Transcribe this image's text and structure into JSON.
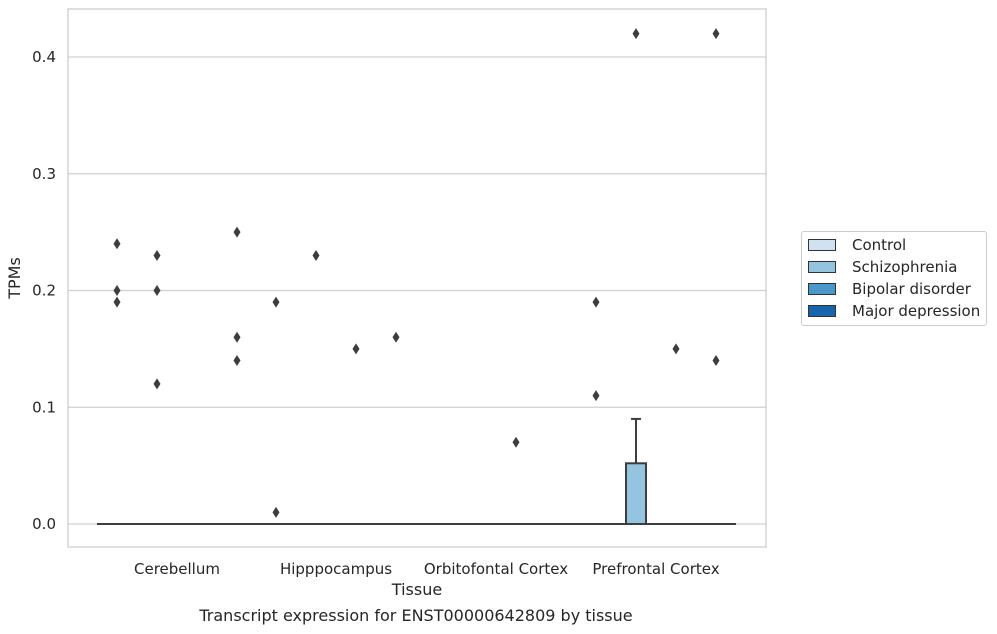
{
  "caption": "Transcript expression for ENST00000642809 by tissue",
  "colors": {
    "Control": "#d0e2f2",
    "Schizophrenia": "#94c4df",
    "Bipolar disorder": "#4a98c9",
    "Major depression": "#1764ab",
    "box_edge": "#3d3d3d",
    "grid": "#d0d0d0"
  },
  "chart_data": {
    "type": "box",
    "xlabel": "Tissue",
    "ylabel": "TPMs",
    "ylim": [
      -0.02,
      0.44
    ],
    "yticks": [
      0.0,
      0.1,
      0.2,
      0.3,
      0.4
    ],
    "ytick_labels": [
      "0.0",
      "0.1",
      "0.2",
      "0.3",
      "0.4"
    ],
    "grid": "horizontal",
    "legend_position": "right",
    "categories": [
      "Cerebellum",
      "Hipppocampus",
      "Orbitofontal Cortex",
      "Prefrontal Cortex"
    ],
    "hue_order": [
      "Control",
      "Schizophrenia",
      "Bipolar disorder",
      "Major depression"
    ],
    "boxes": [
      {
        "category": "Cerebellum",
        "group": "Control",
        "q1": 0,
        "median": 0,
        "q3": 0,
        "whisker_low": 0,
        "whisker_high": 0,
        "outliers": [
          0.24,
          0.2,
          0.19
        ]
      },
      {
        "category": "Cerebellum",
        "group": "Schizophrenia",
        "q1": 0,
        "median": 0,
        "q3": 0,
        "whisker_low": 0,
        "whisker_high": 0,
        "outliers": [
          0.23,
          0.2,
          0.12
        ]
      },
      {
        "category": "Cerebellum",
        "group": "Bipolar disorder",
        "q1": 0,
        "median": 0,
        "q3": 0,
        "whisker_low": 0,
        "whisker_high": 0,
        "outliers": []
      },
      {
        "category": "Cerebellum",
        "group": "Major depression",
        "q1": 0,
        "median": 0,
        "q3": 0,
        "whisker_low": 0,
        "whisker_high": 0,
        "outliers": [
          0.25,
          0.16,
          0.14
        ]
      },
      {
        "category": "Hipppocampus",
        "group": "Control",
        "q1": 0,
        "median": 0,
        "q3": 0,
        "whisker_low": 0,
        "whisker_high": 0,
        "outliers": [
          0.19,
          0.01
        ]
      },
      {
        "category": "Hipppocampus",
        "group": "Schizophrenia",
        "q1": 0,
        "median": 0,
        "q3": 0,
        "whisker_low": 0,
        "whisker_high": 0,
        "outliers": [
          0.23
        ]
      },
      {
        "category": "Hipppocampus",
        "group": "Bipolar disorder",
        "q1": 0,
        "median": 0,
        "q3": 0,
        "whisker_low": 0,
        "whisker_high": 0,
        "outliers": [
          0.15
        ]
      },
      {
        "category": "Hipppocampus",
        "group": "Major depression",
        "q1": 0,
        "median": 0,
        "q3": 0,
        "whisker_low": 0,
        "whisker_high": 0,
        "outliers": [
          0.16
        ]
      },
      {
        "category": "Orbitofontal Cortex",
        "group": "Control",
        "q1": 0,
        "median": 0,
        "q3": 0,
        "whisker_low": 0,
        "whisker_high": 0,
        "outliers": []
      },
      {
        "category": "Orbitofontal Cortex",
        "group": "Schizophrenia",
        "q1": 0,
        "median": 0,
        "q3": 0,
        "whisker_low": 0,
        "whisker_high": 0,
        "outliers": []
      },
      {
        "category": "Orbitofontal Cortex",
        "group": "Bipolar disorder",
        "q1": 0,
        "median": 0,
        "q3": 0,
        "whisker_low": 0,
        "whisker_high": 0,
        "outliers": [
          0.07
        ]
      },
      {
        "category": "Orbitofontal Cortex",
        "group": "Major depression",
        "q1": 0,
        "median": 0,
        "q3": 0,
        "whisker_low": 0,
        "whisker_high": 0,
        "outliers": []
      },
      {
        "category": "Prefrontal Cortex",
        "group": "Control",
        "q1": 0,
        "median": 0,
        "q3": 0,
        "whisker_low": 0,
        "whisker_high": 0,
        "outliers": [
          0.19,
          0.11
        ]
      },
      {
        "category": "Prefrontal Cortex",
        "group": "Schizophrenia",
        "q1": 0,
        "median": 0,
        "q3": 0.052,
        "whisker_low": 0,
        "whisker_high": 0.09,
        "outliers": [
          0.42
        ]
      },
      {
        "category": "Prefrontal Cortex",
        "group": "Bipolar disorder",
        "q1": 0,
        "median": 0,
        "q3": 0,
        "whisker_low": 0,
        "whisker_high": 0,
        "outliers": [
          0.15
        ]
      },
      {
        "category": "Prefrontal Cortex",
        "group": "Major depression",
        "q1": 0,
        "median": 0,
        "q3": 0,
        "whisker_low": 0,
        "whisker_high": 0,
        "outliers": [
          0.42,
          0.14
        ]
      }
    ]
  }
}
